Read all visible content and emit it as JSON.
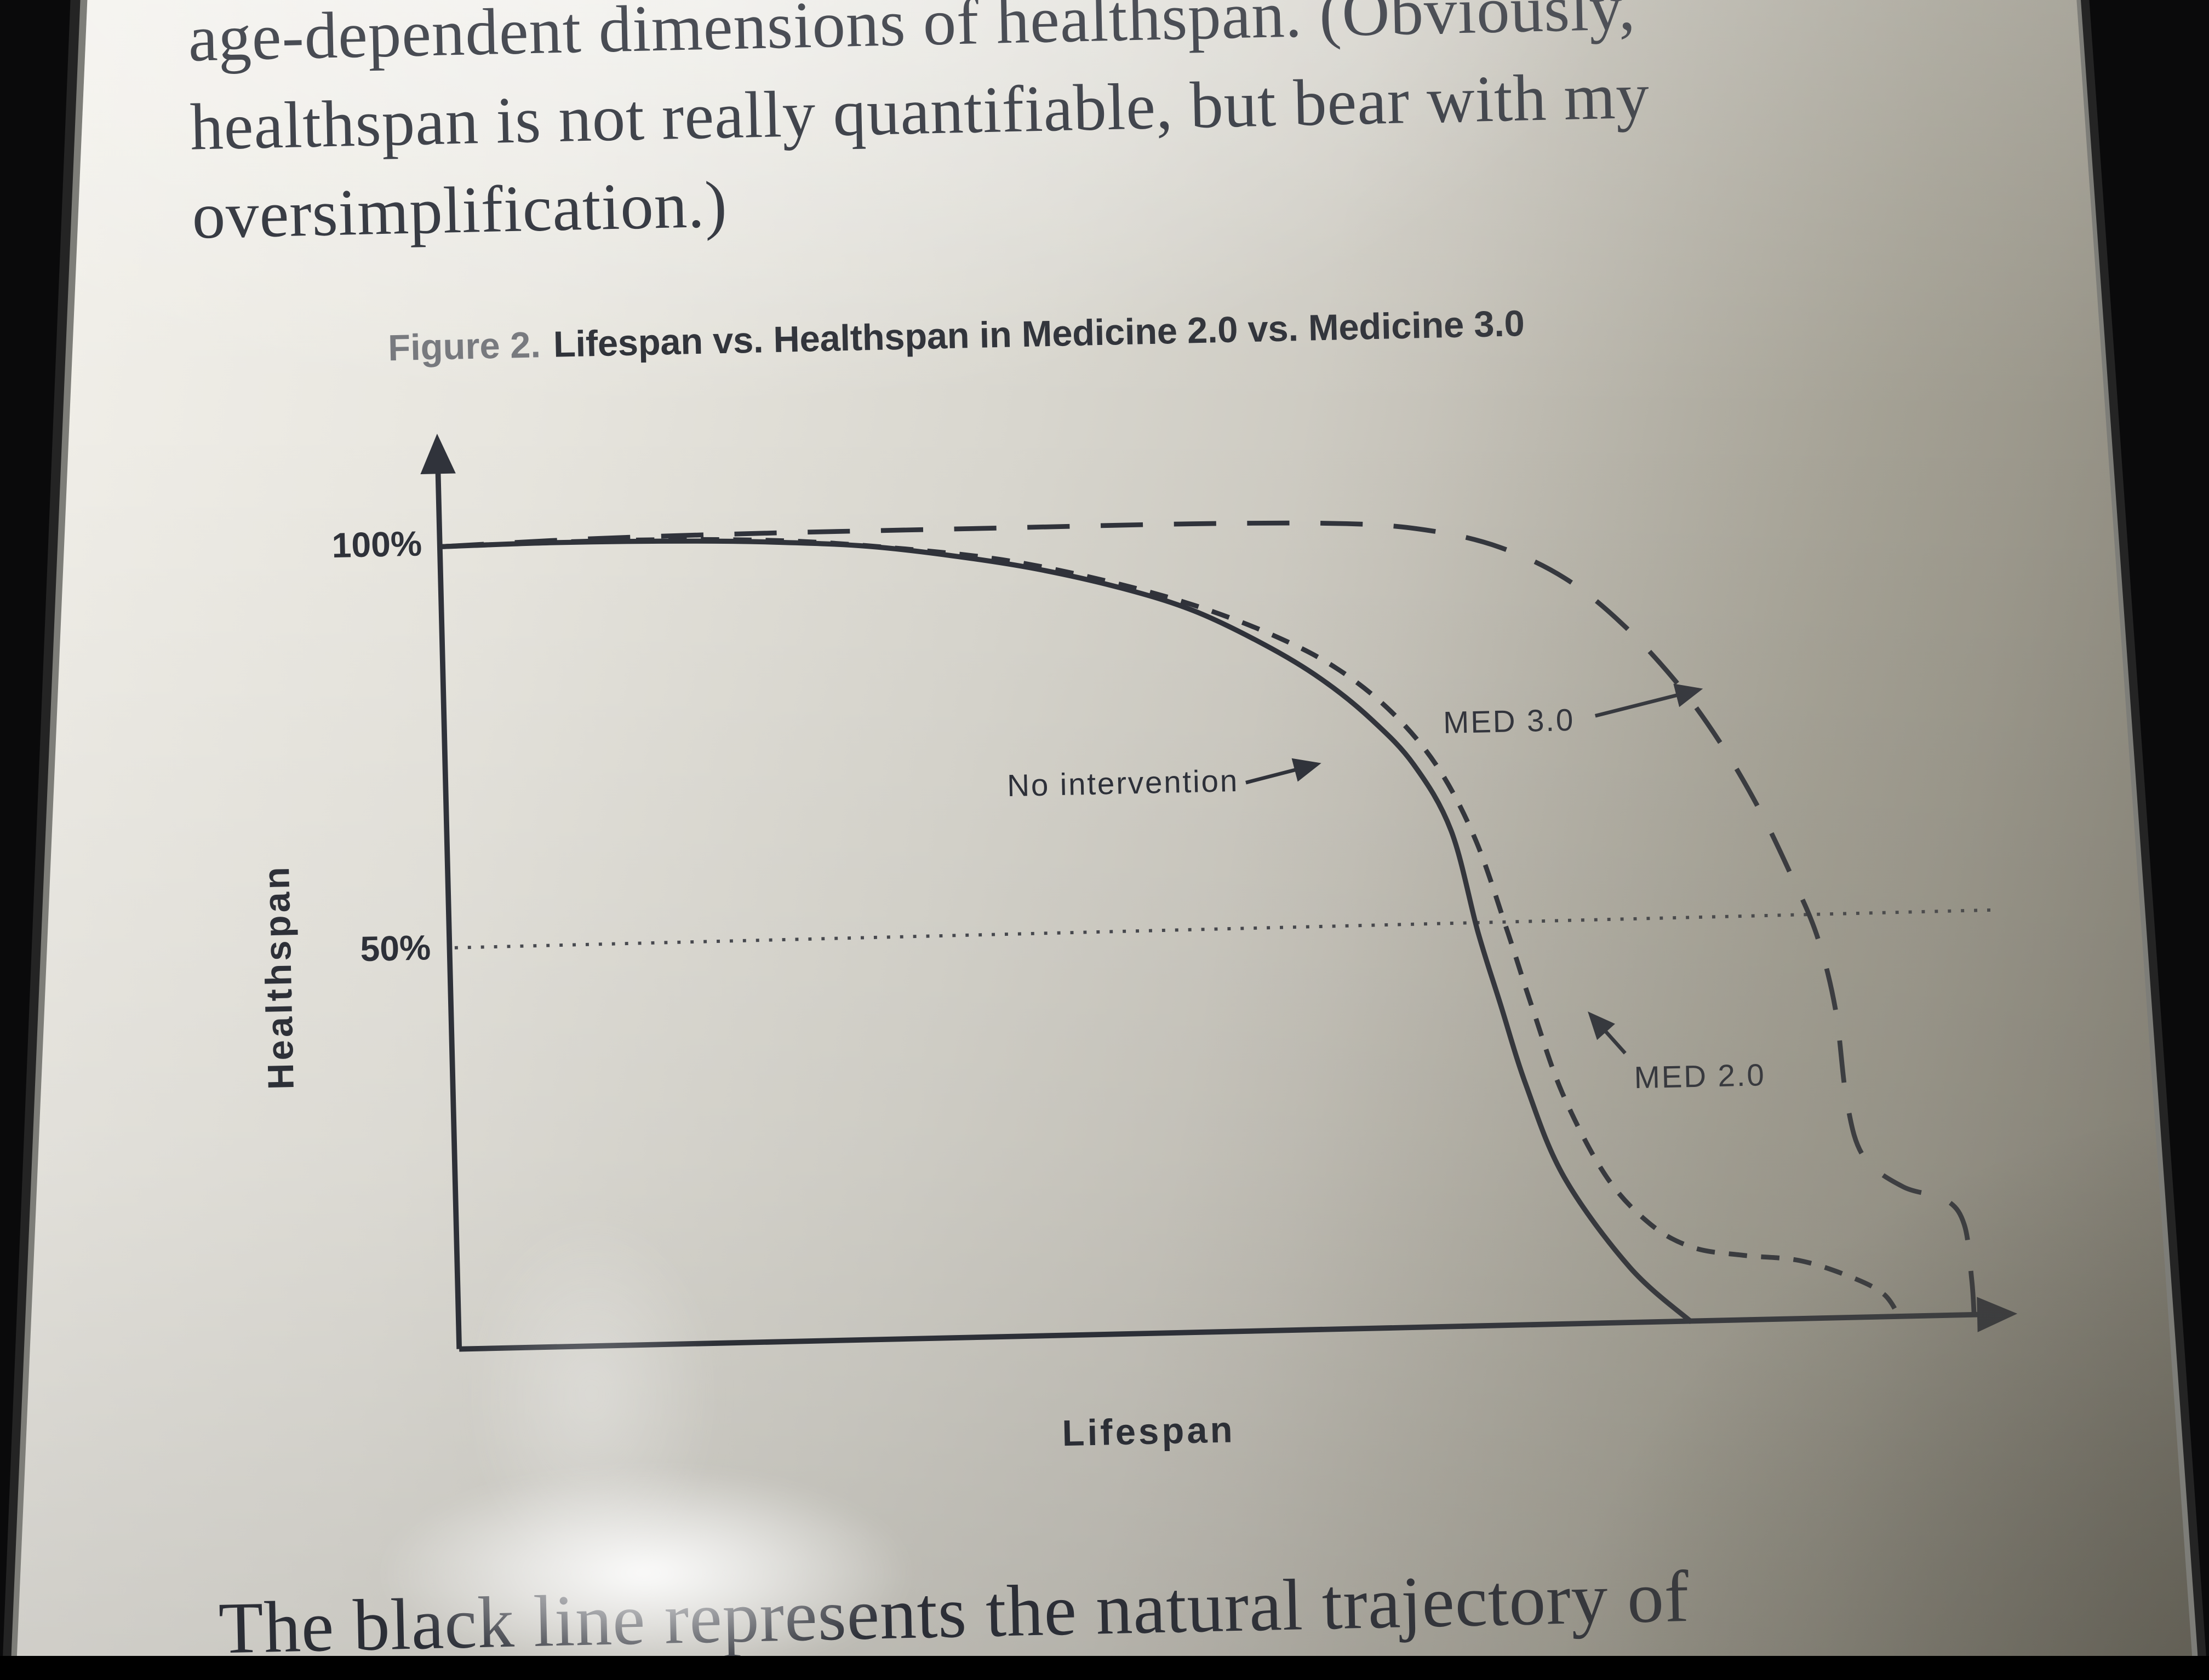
{
  "page": {
    "paragraph_top": {
      "lines": [
        "age-dependent dimensions of healthspan. (Obviously,",
        "healthspan is not really quantifiable, but bear with my",
        "oversimplification.)"
      ]
    },
    "paragraph_bottom": "The black line represents the natural trajectory of"
  },
  "figure": {
    "caption_prefix": "Figure 2.",
    "caption_title": "Lifespan vs. Healthspan in Medicine 2.0 vs. Medicine 3.0"
  },
  "chart_data": {
    "type": "line",
    "title": "Lifespan vs. Healthspan in Medicine 2.0 vs. Medicine 3.0",
    "xlabel": "Lifespan",
    "ylabel": "Healthspan",
    "x_range": [
      0,
      100
    ],
    "y_range": [
      0,
      100
    ],
    "grid": false,
    "legend_position": "inline-annotations",
    "y_ticks": [
      {
        "value": 100,
        "label": "100%"
      },
      {
        "value": 50,
        "label": "50%"
      }
    ],
    "reference_line": {
      "y": 50,
      "style": "dotted"
    },
    "series": [
      {
        "name": "No intervention",
        "style": "solid",
        "points": [
          [
            0,
            100
          ],
          [
            7.4,
            100.2
          ],
          [
            16.5,
            100
          ],
          [
            22,
            99.6
          ],
          [
            27.4,
            98.9
          ],
          [
            32.8,
            97.5
          ],
          [
            38.3,
            95.6
          ],
          [
            43.7,
            93
          ],
          [
            48.3,
            90
          ],
          [
            52.8,
            85.6
          ],
          [
            56.4,
            81.2
          ],
          [
            59.6,
            76
          ],
          [
            62.3,
            70.2
          ],
          [
            64.6,
            61.9
          ],
          [
            66.2,
            49.1
          ],
          [
            67.5,
            40.4
          ],
          [
            69.1,
            29.8
          ],
          [
            71.4,
            18.4
          ],
          [
            75.5,
            7
          ],
          [
            79.4,
            0
          ]
        ]
      },
      {
        "name": "MED 2.0",
        "style": "dashed-short",
        "points": [
          [
            0,
            100
          ],
          [
            12,
            100.3
          ],
          [
            22,
            99.8
          ],
          [
            30.1,
            98.4
          ],
          [
            36.5,
            96.7
          ],
          [
            42.8,
            93.9
          ],
          [
            48.3,
            90.7
          ],
          [
            53.3,
            86.8
          ],
          [
            57.4,
            82.5
          ],
          [
            61,
            76.7
          ],
          [
            63.9,
            69.6
          ],
          [
            66.2,
            60.5
          ],
          [
            68.1,
            49.1
          ],
          [
            69.6,
            39.5
          ],
          [
            71.4,
            28.9
          ],
          [
            74.1,
            18.4
          ],
          [
            76.9,
            12.3
          ],
          [
            79.6,
            9.3
          ],
          [
            82.8,
            8.2
          ],
          [
            86.4,
            7.4
          ],
          [
            89.6,
            5.3
          ],
          [
            91.8,
            3
          ],
          [
            92.8,
            0
          ]
        ]
      },
      {
        "name": "MED 3.0",
        "style": "dashed-long",
        "points": [
          [
            0,
            100
          ],
          [
            10.2,
            100.6
          ],
          [
            22,
            100.8
          ],
          [
            34.7,
            100.8
          ],
          [
            48.3,
            100.8
          ],
          [
            58.3,
            100.4
          ],
          [
            63.7,
            99.3
          ],
          [
            68.2,
            97
          ],
          [
            72.3,
            93
          ],
          [
            75.9,
            87.2
          ],
          [
            79.3,
            79.8
          ],
          [
            82,
            72.3
          ],
          [
            84.4,
            64
          ],
          [
            86.4,
            55.6
          ],
          [
            88,
            47.9
          ],
          [
            89.1,
            38.6
          ],
          [
            89.7,
            27.2
          ],
          [
            90.7,
            20.2
          ],
          [
            93.2,
            16.3
          ],
          [
            95.9,
            14.6
          ],
          [
            97.1,
            11.4
          ],
          [
            97.5,
            4.4
          ],
          [
            97.6,
            0
          ]
        ]
      }
    ],
    "annotations": [
      {
        "text": "No intervention",
        "points_to": "solid curve"
      },
      {
        "text": "MED 3.0",
        "points_to": "long-dash curve"
      },
      {
        "text": "MED 2.0",
        "points_to": "short-dash curve"
      }
    ]
  },
  "colors": {
    "ink": "#30333b",
    "body_text": "#262a33",
    "caption_prefix": "#74767b",
    "page_light": "#f2f0ea",
    "page_dark": "#928f84",
    "bezel": "#0a0a0b"
  }
}
